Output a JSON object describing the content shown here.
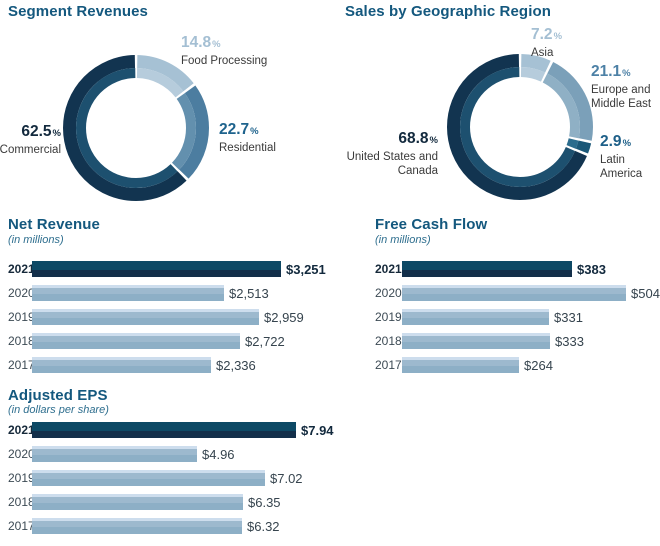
{
  "percent_sign": "%",
  "styles": {
    "title_color": "#14587e",
    "subtitle_color": "#2e6e8e",
    "name_text_color": "#3a3a3a",
    "dark_bar_top": "#0d4965",
    "dark_bar_bottom": "#132f4a",
    "light_bar": "#9db9ce",
    "background": "#ffffff"
  },
  "chart_data": [
    {
      "type": "donut",
      "title": "Segment Revenues",
      "legend_position": "around",
      "segments": [
        {
          "label": "Food Processing",
          "value": 14.8,
          "display": "14.8",
          "color": "#a6c1d4",
          "inner_color": "#b6ccdc",
          "pct_color": "#a4bfd3"
        },
        {
          "label": "Residential",
          "value": 22.7,
          "display": "22.7",
          "color": "#4c7da0",
          "inner_color": "#6390ae",
          "pct_color": "#1e638d"
        },
        {
          "label": "Commercial",
          "value": 62.5,
          "display": "62.5",
          "color": "#123450",
          "inner_color": "#1d506f",
          "pct_color": "#12293d"
        }
      ]
    },
    {
      "type": "donut",
      "title": "Sales by Geographic Region",
      "legend_position": "around",
      "segments": [
        {
          "label": "Asia",
          "value": 7.2,
          "display": "7.2",
          "color": "#a6c1d4",
          "inner_color": "#b6ccdc",
          "pct_color": "#a4bfd3"
        },
        {
          "label": "Europe and Middle East",
          "value": 21.1,
          "display": "21.1",
          "color": "#7ba0b9",
          "inner_color": "#8fb0c5",
          "pct_color": "#4d81a6"
        },
        {
          "label": "Latin America",
          "value": 2.9,
          "display": "2.9",
          "color": "#1b5878",
          "inner_color": "#2b6c8d",
          "pct_color": "#1d5f88"
        },
        {
          "label": "United States and Canada",
          "value": 68.8,
          "display": "68.8",
          "color": "#123450",
          "inner_color": "#1d506f",
          "pct_color": "#12293d"
        }
      ]
    },
    {
      "type": "bar",
      "title": "Net Revenue",
      "subtitle": "(in millions)",
      "categories": [
        "2021",
        "2020",
        "2019",
        "2018",
        "2017"
      ],
      "values": [
        3251,
        2513,
        2959,
        2722,
        2336
      ],
      "value_labels": [
        "$3,251",
        "$2,513",
        "$2,959",
        "$2,722",
        "$2,336"
      ],
      "highlight_category": "2021",
      "orientation": "horizontal"
    },
    {
      "type": "bar",
      "title": "Free Cash Flow",
      "subtitle": "(in millions)",
      "categories": [
        "2021",
        "2020",
        "2019",
        "2018",
        "2017"
      ],
      "values": [
        383,
        504,
        331,
        333,
        264
      ],
      "value_labels": [
        "$383",
        "$504",
        "$331",
        "$333",
        "$264"
      ],
      "highlight_category": "2021",
      "orientation": "horizontal"
    },
    {
      "type": "bar",
      "title": "Adjusted EPS",
      "subtitle": "(in dollars per share)",
      "categories": [
        "2021",
        "2020",
        "2019",
        "2018",
        "2017"
      ],
      "values": [
        7.94,
        4.96,
        7.02,
        6.35,
        6.32
      ],
      "value_labels": [
        "$7.94",
        "$4.96",
        "$7.02",
        "$6.35",
        "$6.32"
      ],
      "highlight_category": "2021",
      "orientation": "horizontal"
    }
  ]
}
